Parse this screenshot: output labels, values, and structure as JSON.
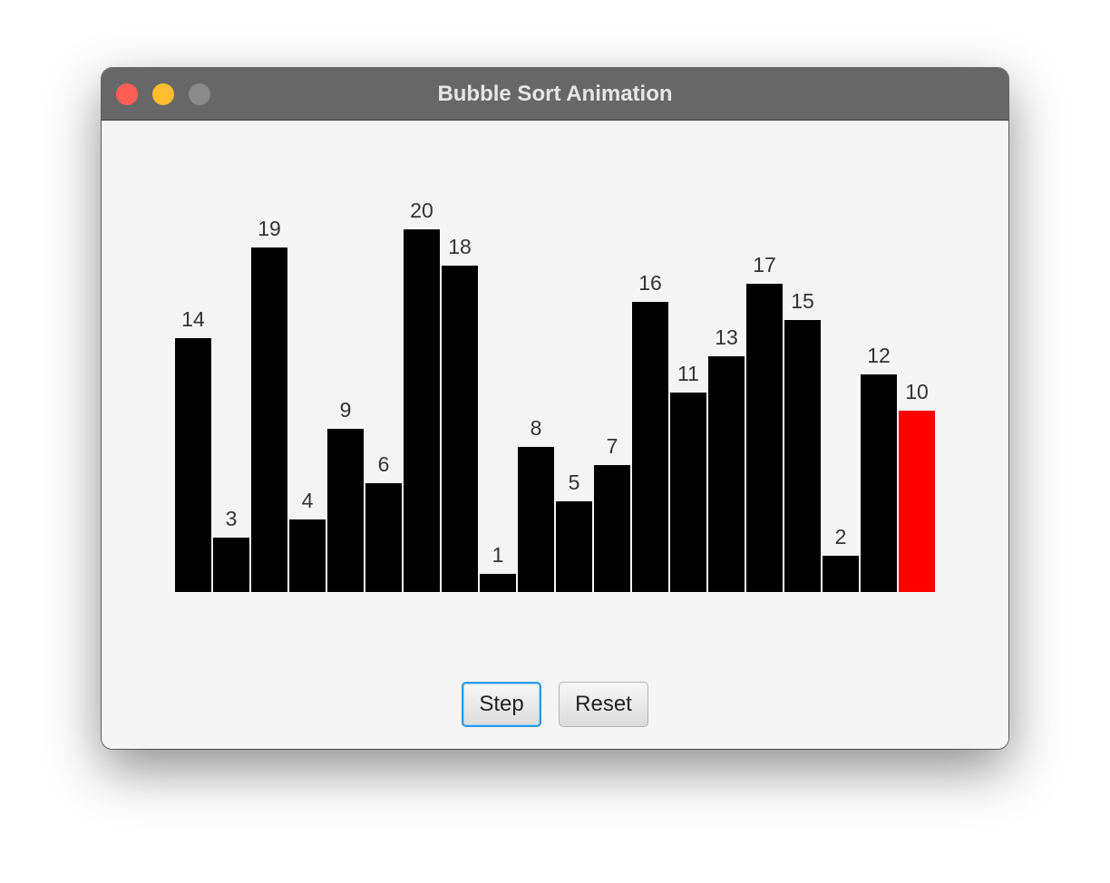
{
  "window": {
    "title": "Bubble Sort Animation",
    "traffic_lights": {
      "close_color": "#ff5f57",
      "minimize_color": "#febc2e",
      "maximize_color": "#8a8a8a"
    }
  },
  "chart_data": {
    "type": "bar",
    "values": [
      14,
      3,
      19,
      4,
      9,
      6,
      20,
      18,
      1,
      8,
      5,
      7,
      16,
      11,
      13,
      17,
      15,
      2,
      12,
      10
    ],
    "highlight_index": 19,
    "bar_color": "#000000",
    "highlight_color": "#ff0000"
  },
  "controls": {
    "step_label": "Step",
    "reset_label": "Reset"
  }
}
